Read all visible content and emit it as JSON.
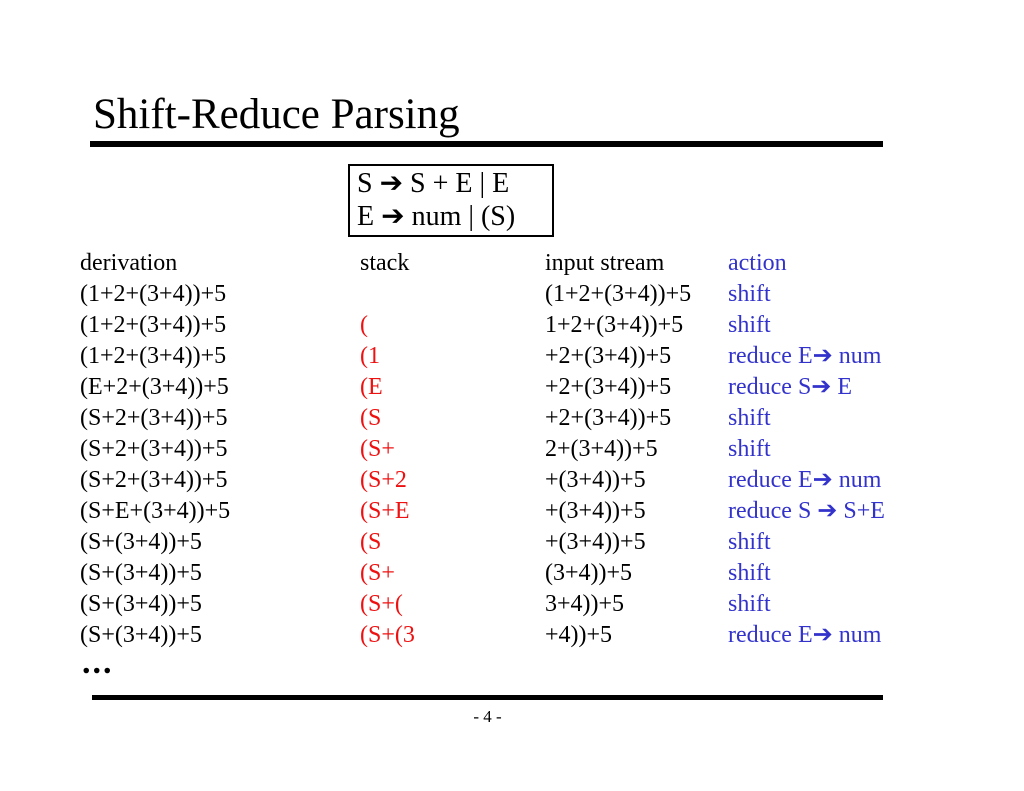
{
  "slide": {
    "title": "Shift-Reduce Parsing",
    "ellipsis": "...",
    "page_number": "- 4 -",
    "colors": {
      "text": "#000000",
      "stack": "#ee1111",
      "action": "#3333cc",
      "background": "#ffffff"
    }
  },
  "grammar": {
    "lines": [
      "S ➔ S + E | E",
      "E ➔ num | (S)"
    ]
  },
  "table": {
    "headers": [
      "derivation",
      "stack",
      "input stream",
      "action"
    ],
    "rows": [
      {
        "derivation": "(1+2+(3+4))+5",
        "stack": "",
        "input": "(1+2+(3+4))+5",
        "action": "shift"
      },
      {
        "derivation": "(1+2+(3+4))+5",
        "stack": "(",
        "input": "1+2+(3+4))+5",
        "action": "shift"
      },
      {
        "derivation": "(1+2+(3+4))+5",
        "stack": "(1",
        "input": "+2+(3+4))+5",
        "action": "reduce E➔ num"
      },
      {
        "derivation": "(E+2+(3+4))+5",
        "stack": "(E",
        "input": "+2+(3+4))+5",
        "action": "reduce S➔ E"
      },
      {
        "derivation": "(S+2+(3+4))+5",
        "stack": "(S",
        "input": "+2+(3+4))+5",
        "action": "shift"
      },
      {
        "derivation": "(S+2+(3+4))+5",
        "stack": "(S+",
        "input": "2+(3+4))+5",
        "action": "shift"
      },
      {
        "derivation": "(S+2+(3+4))+5",
        "stack": "(S+2",
        "input": "+(3+4))+5",
        "action": "reduce E➔ num"
      },
      {
        "derivation": "(S+E+(3+4))+5",
        "stack": "(S+E",
        "input": "+(3+4))+5",
        "action": "reduce S ➔ S+E"
      },
      {
        "derivation": "(S+(3+4))+5",
        "stack": "(S",
        "input": "+(3+4))+5",
        "action": "shift"
      },
      {
        "derivation": "(S+(3+4))+5",
        "stack": "(S+",
        "input": "(3+4))+5",
        "action": "shift"
      },
      {
        "derivation": "(S+(3+4))+5",
        "stack": "(S+(",
        "input": "3+4))+5",
        "action": "shift"
      },
      {
        "derivation": "(S+(3+4))+5",
        "stack": "(S+(3",
        "input": "+4))+5",
        "action": "reduce E➔ num"
      }
    ]
  }
}
